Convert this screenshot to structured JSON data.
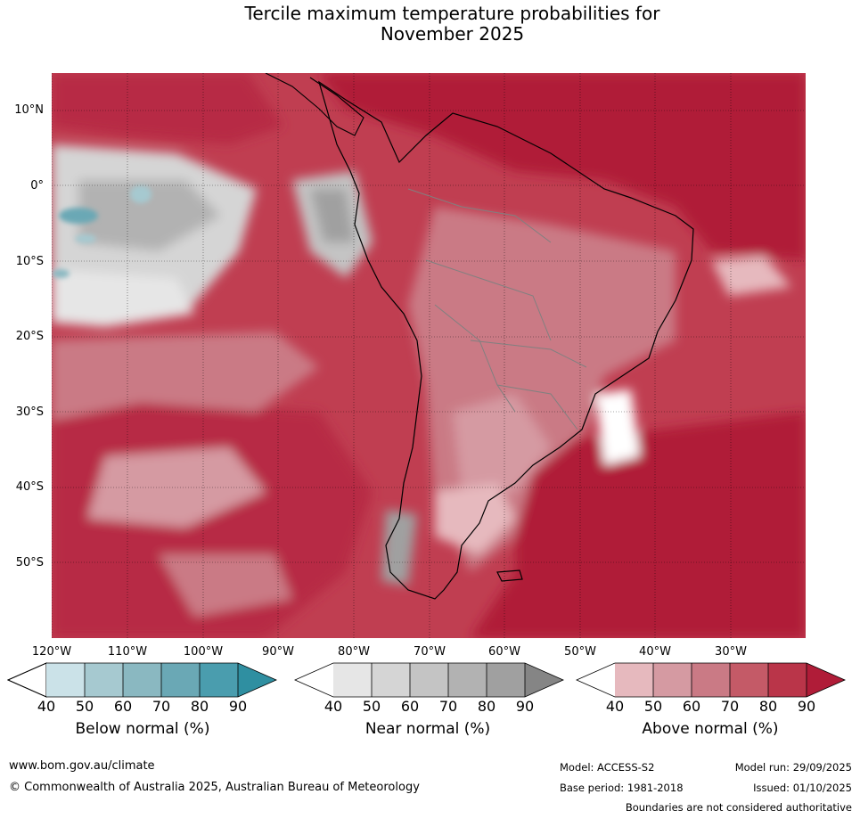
{
  "title": {
    "line1": "Tercile maximum temperature probabilities for",
    "line2": "November 2025"
  },
  "map": {
    "region": "South America and surrounding oceans",
    "lat_labels": [
      "10°N",
      "0°",
      "10°S",
      "20°S",
      "30°S",
      "40°S",
      "50°S"
    ],
    "lon_labels": [
      "120°W",
      "110°W",
      "100°W",
      "90°W",
      "80°W",
      "70°W",
      "60°W",
      "50°W",
      "40°W",
      "30°W"
    ]
  },
  "colorbars": [
    {
      "title": "Below normal (%)",
      "ticks": [
        "40",
        "50",
        "60",
        "70",
        "80",
        "90"
      ],
      "colors": [
        "#ffffff",
        "#cbe2e8",
        "#a6c9d0",
        "#8ab8c1",
        "#6aa8b5",
        "#4a9dae",
        "#2f8fa1"
      ]
    },
    {
      "title": "Near normal (%)",
      "ticks": [
        "40",
        "50",
        "60",
        "70",
        "80",
        "90"
      ],
      "colors": [
        "#ffffff",
        "#e6e6e6",
        "#d5d5d5",
        "#c4c4c4",
        "#b2b2b2",
        "#a0a0a0",
        "#858585"
      ]
    },
    {
      "title": "Above normal (%)",
      "ticks": [
        "40",
        "50",
        "60",
        "70",
        "80",
        "90"
      ],
      "colors": [
        "#ffffff",
        "#e6b9be",
        "#d59aa2",
        "#ca7a85",
        "#c45a67",
        "#ba3549",
        "#b01c38"
      ]
    }
  ],
  "footer": {
    "website": "www.bom.gov.au/climate",
    "copyright": "© Commonwealth of Australia 2025, Australian Bureau of Meteorology",
    "model": "Model: ACCESS-S2",
    "base_period": "Base period: 1981-2018",
    "model_run": "Model run: 29/09/2025",
    "issued": "Issued: 01/10/2025",
    "disclaimer": "Boundaries are not considered authoritative"
  }
}
